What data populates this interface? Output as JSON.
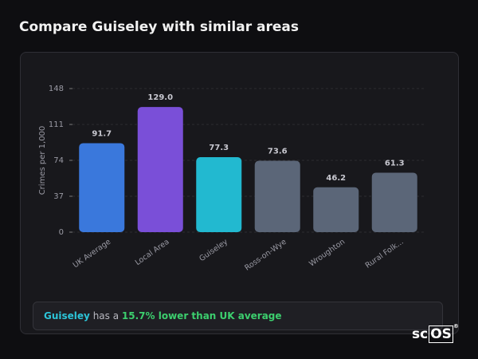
{
  "header": {
    "title": "Compare Guiseley with similar areas"
  },
  "chart_data": {
    "type": "bar",
    "y_label": "Crimes per 1,000",
    "categories": [
      "UK Average",
      "Local Area",
      "Guiseley",
      "Ross-on-Wye",
      "Wroughton",
      "Rural Folk..."
    ],
    "values": [
      91.7,
      129.0,
      77.3,
      73.6,
      46.2,
      61.3
    ],
    "value_labels": [
      "91.7",
      "129.0",
      "77.3",
      "73.6",
      "46.2",
      "61.3"
    ],
    "colors": [
      "#3a78dc",
      "#7a4fd8",
      "#22b9d0",
      "#5b6678",
      "#5b6678",
      "#5b6678"
    ],
    "ylim": [
      0,
      148
    ],
    "yticks": [
      0,
      37,
      74,
      111,
      148
    ],
    "grid": true
  },
  "summary": {
    "area": "Guiseley",
    "text": "has a",
    "comparison": "15.7% lower than UK average"
  },
  "logo": {
    "prefix": "sc",
    "boxed": "OS",
    "mark": "®"
  }
}
